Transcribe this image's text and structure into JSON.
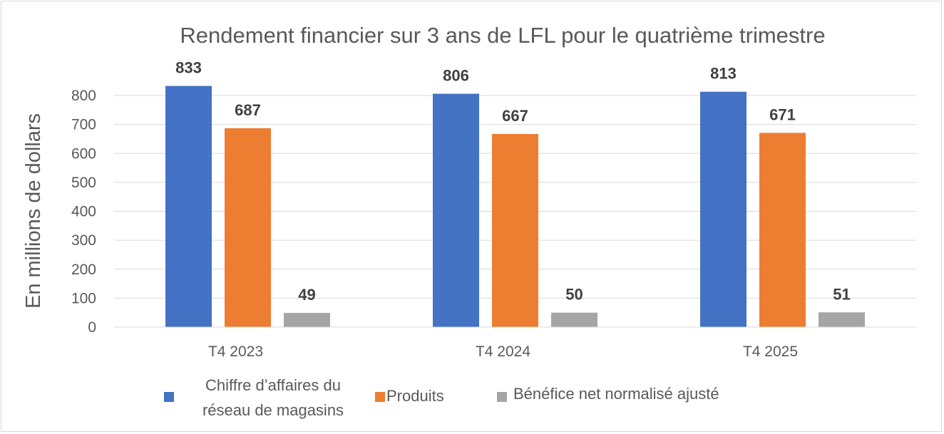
{
  "chart_data": {
    "type": "bar",
    "title": "Rendement financier sur 3 ans de LFL pour le quatrième trimestre",
    "xlabel": "",
    "ylabel": "En millions de dollars",
    "ylim": [
      0,
      800
    ],
    "yticks": [
      0,
      100,
      200,
      300,
      400,
      500,
      600,
      700,
      800
    ],
    "grid": true,
    "legend_position": "bottom",
    "categories": [
      "T4 2023",
      "T4 2024",
      "T4 2025"
    ],
    "series": [
      {
        "name": "Chiffre d’affaires du réseau de magasins",
        "color": "#4472c4",
        "values": [
          833,
          806,
          813
        ]
      },
      {
        "name": "Produits",
        "color": "#ed7d31",
        "values": [
          687,
          667,
          671
        ]
      },
      {
        "name": "Bénéfice net normalisé ajusté",
        "color": "#a5a5a5",
        "values": [
          49,
          50,
          51
        ]
      }
    ]
  }
}
